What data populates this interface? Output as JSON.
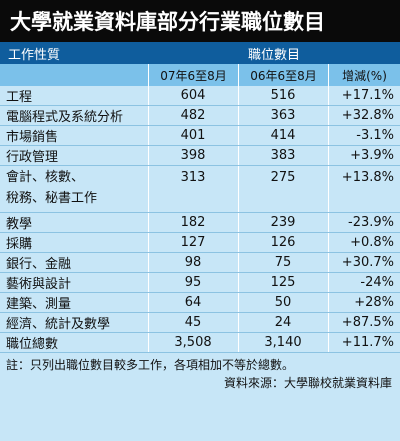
{
  "title": "大學就業資料庫部分行業職位數目",
  "header": {
    "category_label": "工作性質",
    "group_label": "職位數目",
    "col_2007": "07年6至8月",
    "col_2006": "06年6至8月",
    "col_change": "增減(%)"
  },
  "rows": [
    {
      "label": "工程",
      "v07": "604",
      "v06": "516",
      "chg": "+17.1%"
    },
    {
      "label": "電腦程式及系統分析",
      "v07": "482",
      "v06": "363",
      "chg": "+32.8%"
    },
    {
      "label": "市場銷售",
      "v07": "401",
      "v06": "414",
      "chg": "-3.1%"
    },
    {
      "label": "行政管理",
      "v07": "398",
      "v06": "383",
      "chg": "+3.9%"
    },
    {
      "label": "會計、核數、",
      "label2": "稅務、秘書工作",
      "v07": "313",
      "v06": "275",
      "chg": "+13.8%"
    },
    {
      "label": "教學",
      "v07": "182",
      "v06": "239",
      "chg": "-23.9%"
    },
    {
      "label": "採購",
      "v07": "127",
      "v06": "126",
      "chg": "+0.8%"
    },
    {
      "label": "銀行、金融",
      "v07": "98",
      "v06": "75",
      "chg": "+30.7%"
    },
    {
      "label": "藝術與設計",
      "v07": "95",
      "v06": "125",
      "chg": "-24%"
    },
    {
      "label": "建築、測量",
      "v07": "64",
      "v06": "50",
      "chg": "+28%"
    },
    {
      "label": "經濟、統計及數學",
      "v07": "45",
      "v06": "24",
      "chg": "+87.5%"
    },
    {
      "label": "職位總數",
      "v07": "3,508",
      "v06": "3,140",
      "chg": "+11.7%"
    }
  ],
  "note": "註：只列出職位數目較多工作，各項相加不等於總數。",
  "source": "資料來源：大學聯校就業資料庫"
}
